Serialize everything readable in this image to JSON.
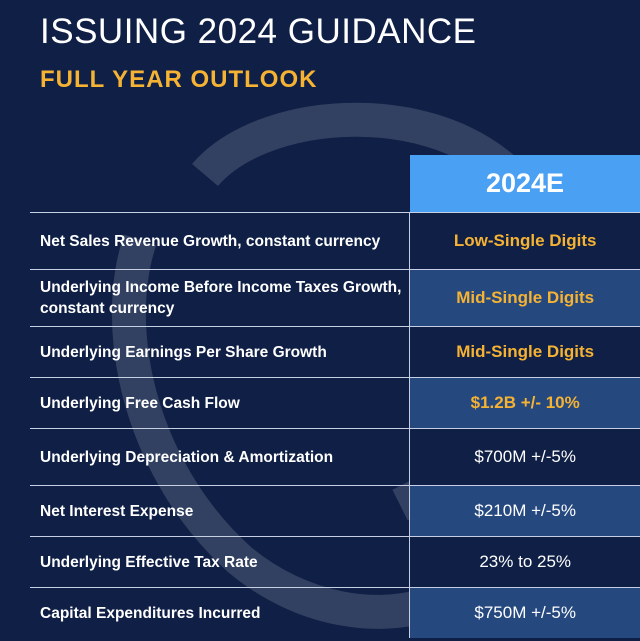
{
  "slide": {
    "title": "ISSUING 2024 GUIDANCE",
    "subtitle": "FULL YEAR OUTLOOK",
    "colors": {
      "background": "#0f1f45",
      "accent": "#f5b233",
      "header": "#4aa0f2",
      "band": "#25497f"
    }
  },
  "table": {
    "header": "2024E",
    "rows": [
      {
        "label": "Net Sales Revenue Growth, constant currency",
        "value": "Low-Single Digits"
      },
      {
        "label": "Underlying Income Before Income Taxes Growth, constant currency",
        "value": "Mid-Single Digits"
      },
      {
        "label": "Underlying Earnings Per Share Growth",
        "value": "Mid-Single Digits"
      },
      {
        "label": "Underlying Free Cash Flow",
        "value": "$1.2B +/- 10%"
      },
      {
        "label": "Underlying Depreciation & Amortization",
        "value": "$700M +/-5%"
      },
      {
        "label": "Net Interest Expense",
        "value": "$210M +/-5%"
      },
      {
        "label": "Underlying Effective Tax Rate",
        "value": "23% to 25%"
      },
      {
        "label": "Capital Expenditures Incurred",
        "value": "$750M +/-5%"
      }
    ]
  }
}
